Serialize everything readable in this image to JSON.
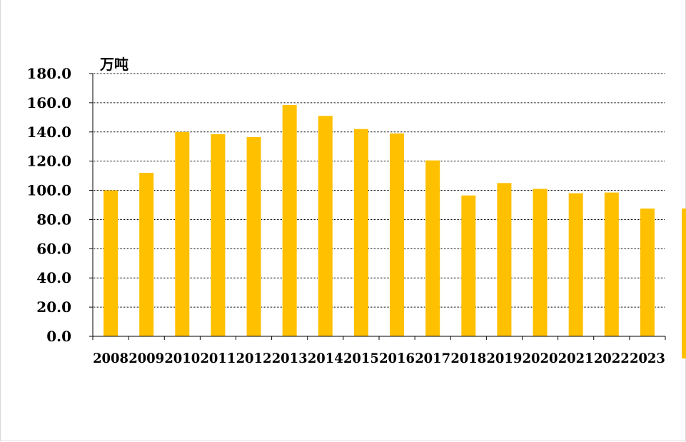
{
  "chart_data": {
    "type": "bar",
    "unit_label": "万吨",
    "categories": [
      "2008",
      "2009",
      "2010",
      "2011",
      "2012",
      "2013",
      "2014",
      "2015",
      "2016",
      "2017",
      "2018",
      "2019",
      "2020",
      "2021",
      "2022",
      "2023"
    ],
    "values": [
      100.0,
      112.0,
      140.0,
      138.5,
      136.5,
      158.5,
      151.0,
      142.0,
      139.0,
      120.5,
      96.5,
      105.0,
      101.0,
      98.0,
      98.5,
      87.5
    ],
    "ylim": [
      0,
      180
    ],
    "y_ticks": [
      0,
      20,
      40,
      60,
      80,
      100,
      120,
      140,
      160,
      180
    ],
    "y_tick_labels": [
      "0.0",
      "20.0",
      "40.0",
      "60.0",
      "80.0",
      "100.0",
      "120.0",
      "140.0",
      "160.0",
      "180.0"
    ],
    "grid": true,
    "grid_style": "dotted",
    "bar_color": "#ffc000"
  }
}
